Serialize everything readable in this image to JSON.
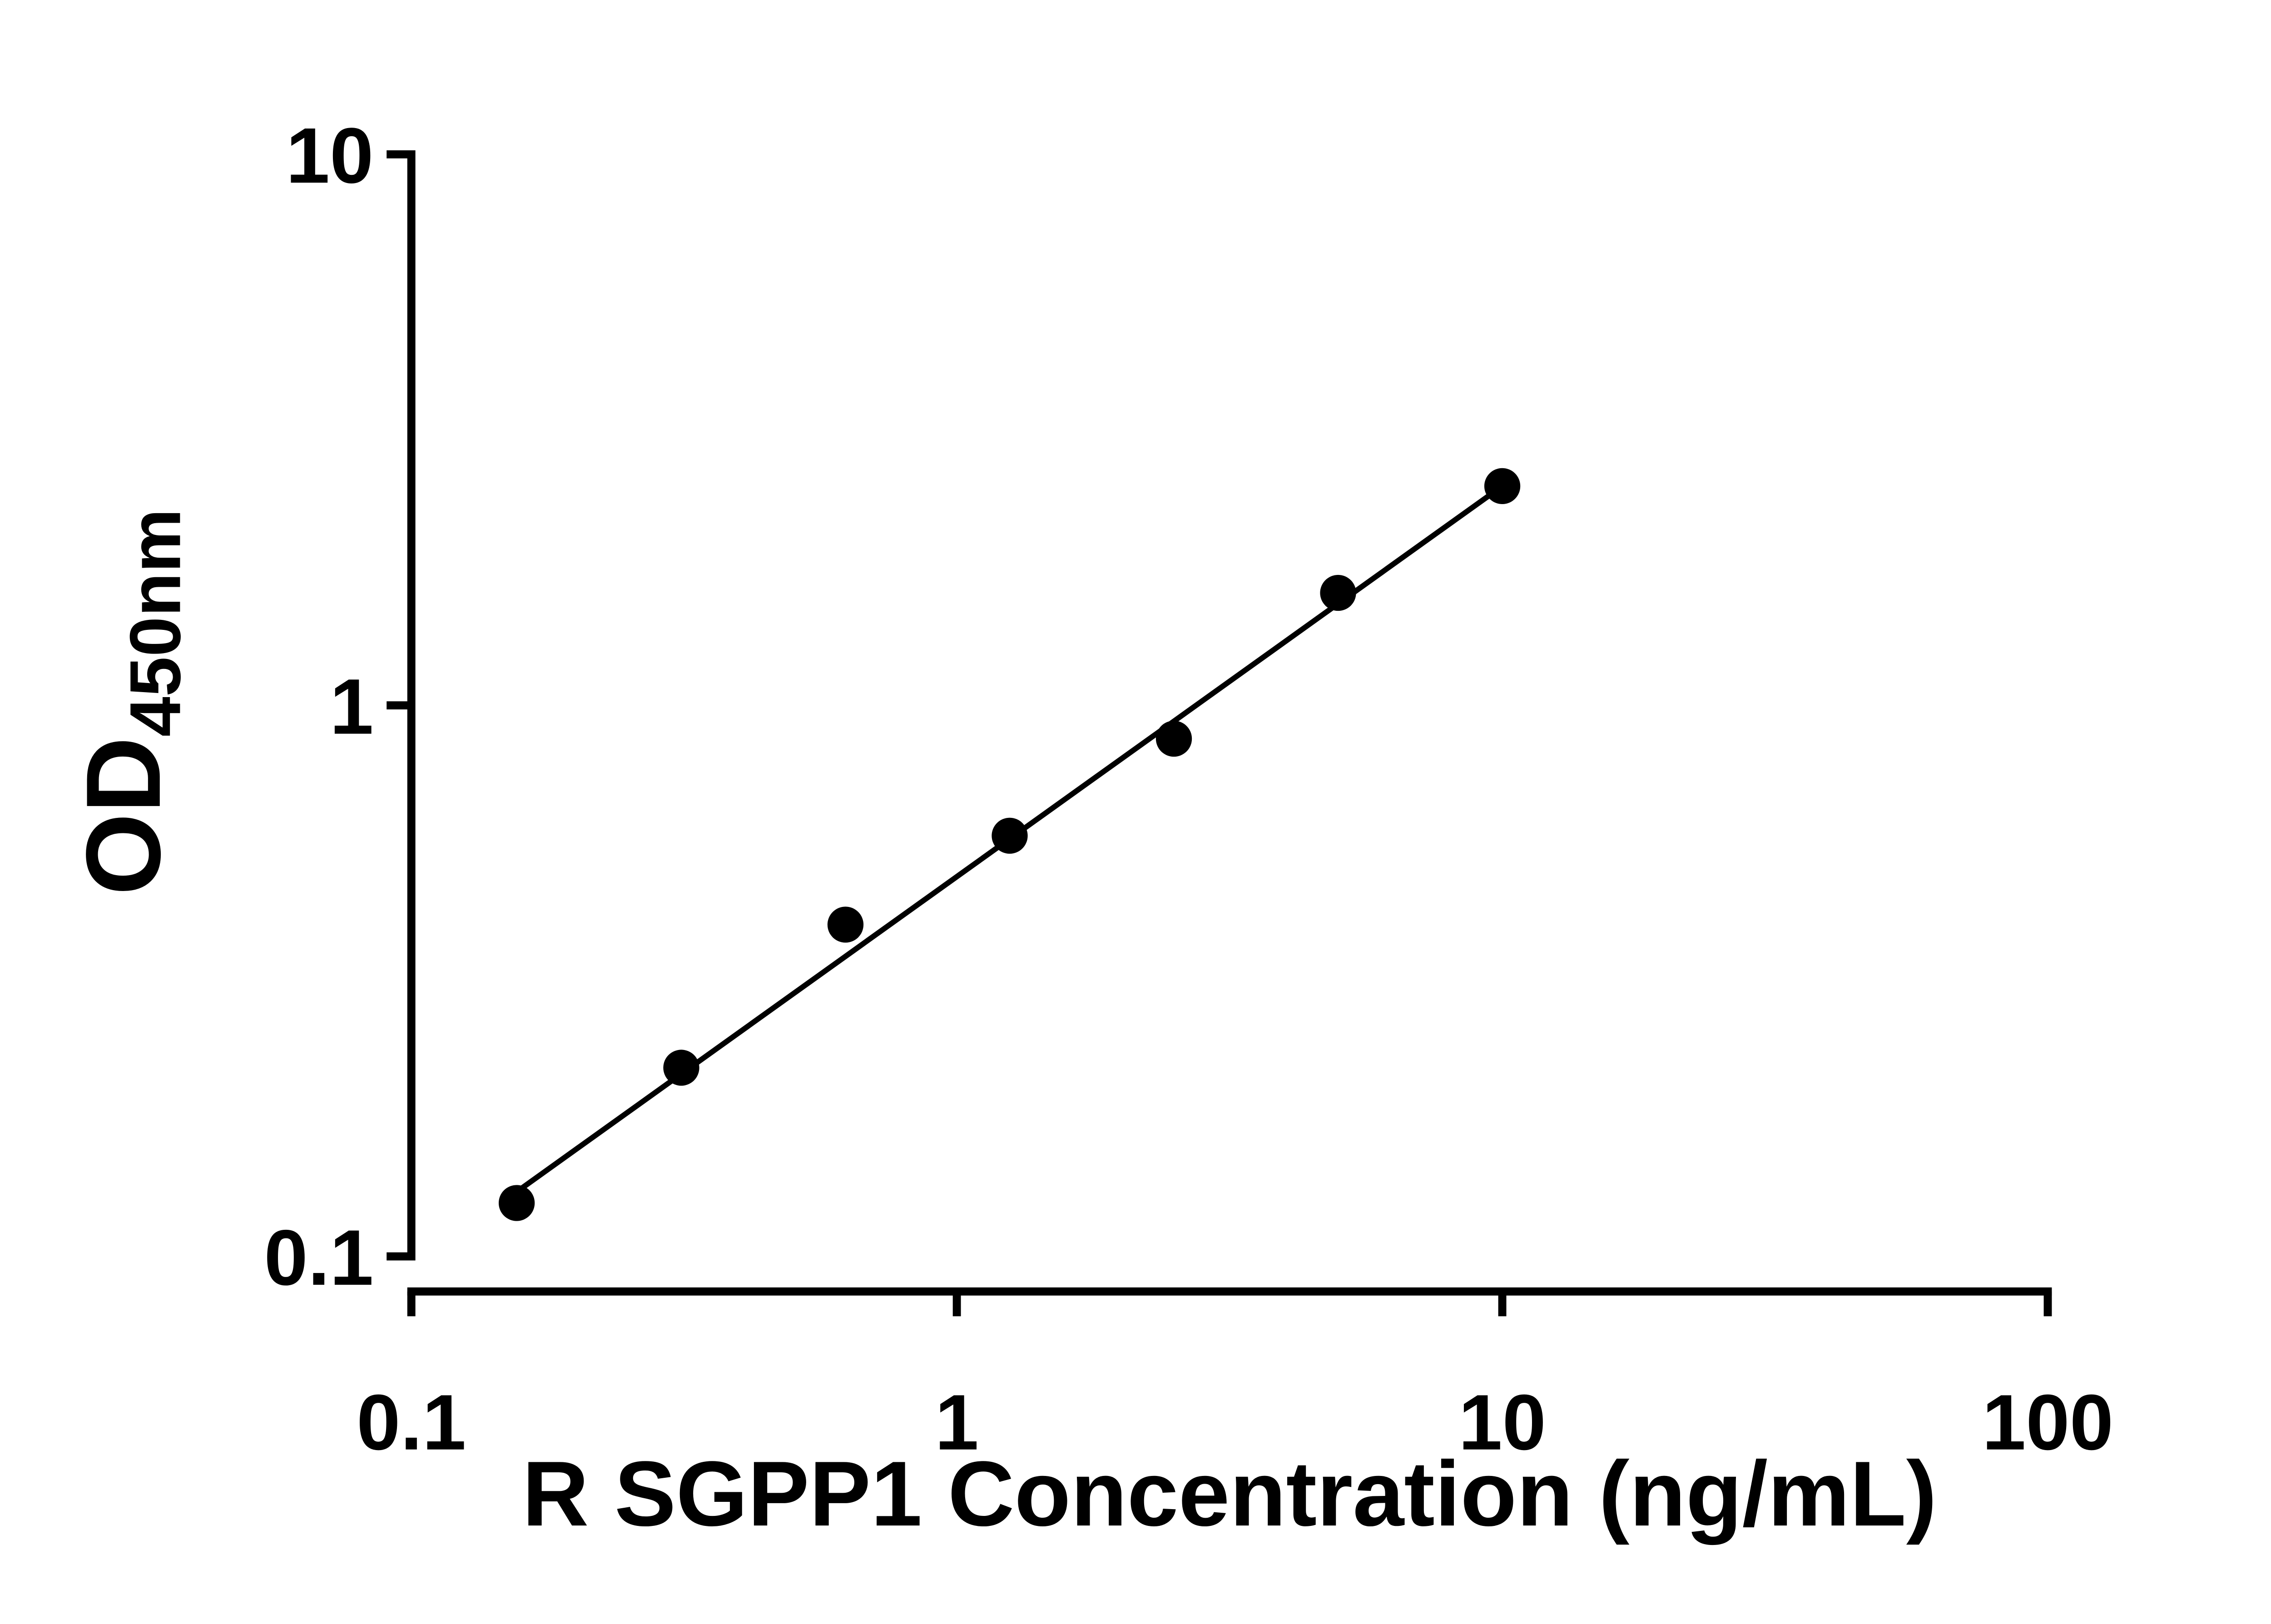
{
  "chart_data": {
    "type": "scatter",
    "title": "",
    "xlabel": "R SGPP1 Concentration (ng/mL)",
    "ylabel_main": "OD",
    "ylabel_sub": "450nm",
    "x_scale": "log",
    "y_scale": "log",
    "xlim": [
      0.1,
      100
    ],
    "ylim": [
      0.1,
      10
    ],
    "grid": false,
    "legend": null,
    "x_ticks": [
      {
        "value": 0.1,
        "label": "0.1"
      },
      {
        "value": 1,
        "label": "1"
      },
      {
        "value": 10,
        "label": "10"
      },
      {
        "value": 100,
        "label": "100"
      }
    ],
    "y_ticks": [
      {
        "value": 0.1,
        "label": "0.1"
      },
      {
        "value": 1,
        "label": "1"
      },
      {
        "value": 10,
        "label": "10"
      }
    ],
    "points": [
      {
        "x": 0.156,
        "y": 0.125
      },
      {
        "x": 0.3125,
        "y": 0.22
      },
      {
        "x": 0.625,
        "y": 0.4
      },
      {
        "x": 1.25,
        "y": 0.58
      },
      {
        "x": 2.5,
        "y": 0.87
      },
      {
        "x": 5,
        "y": 1.6
      },
      {
        "x": 10,
        "y": 2.5
      }
    ],
    "trendline": {
      "x1": 0.156,
      "y1": 0.131,
      "x2": 10,
      "y2": 2.5
    },
    "marker_color": "#000000",
    "line_color": "#000000",
    "axis_color": "#000000",
    "background_color": "#ffffff"
  }
}
